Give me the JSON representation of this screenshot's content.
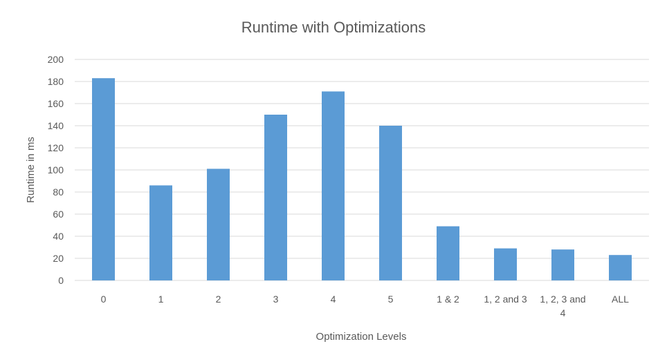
{
  "chart_data": {
    "type": "bar",
    "title": "Runtime with Optimizations",
    "xlabel": "Optimization Levels",
    "ylabel": "Runtime in ms",
    "categories": [
      "0",
      "1",
      "2",
      "3",
      "4",
      "5",
      "1 & 2",
      "1, 2 and 3",
      "1, 2, 3 and 4",
      "ALL"
    ],
    "category_lines": [
      [
        "0"
      ],
      [
        "1"
      ],
      [
        "2"
      ],
      [
        "3"
      ],
      [
        "4"
      ],
      [
        "5"
      ],
      [
        "1 & 2"
      ],
      [
        "1, 2 and 3"
      ],
      [
        "1, 2, 3 and",
        "4"
      ],
      [
        "ALL"
      ]
    ],
    "values": [
      183,
      86,
      101,
      150,
      171,
      140,
      49,
      29,
      28,
      23
    ],
    "ylim": [
      0,
      200
    ],
    "yticks": [
      0,
      20,
      40,
      60,
      80,
      100,
      120,
      140,
      160,
      180,
      200
    ],
    "grid": true,
    "legend": "none",
    "bar_color": "#5b9bd5"
  }
}
